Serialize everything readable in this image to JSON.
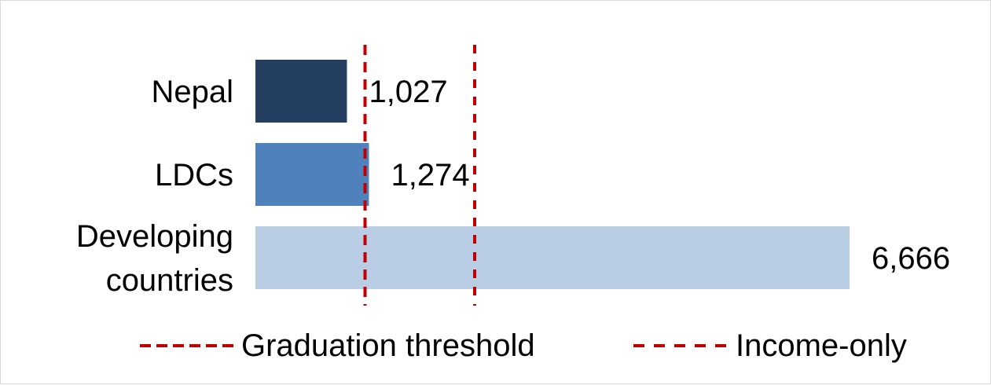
{
  "chart_data": {
    "type": "bar",
    "orientation": "horizontal",
    "categories": [
      [
        "Nepal"
      ],
      [
        "LDCs"
      ],
      [
        "Developing",
        "countries"
      ]
    ],
    "values": [
      1027,
      1274,
      6666
    ],
    "value_labels": [
      "1,027",
      "1,274",
      "6,666"
    ],
    "bar_colors": [
      "#253f60",
      "#4f81bd",
      "#b9cde5"
    ],
    "xlim": [
      0,
      6666
    ],
    "thresholds": [
      {
        "name": "Graduation threshold",
        "value": 1230,
        "color": "#c00000",
        "dash": "long"
      },
      {
        "name": "Income-only",
        "value": 2460,
        "color": "#c00000",
        "dash": "short"
      }
    ],
    "legend_position": "bottom",
    "grid": false
  }
}
